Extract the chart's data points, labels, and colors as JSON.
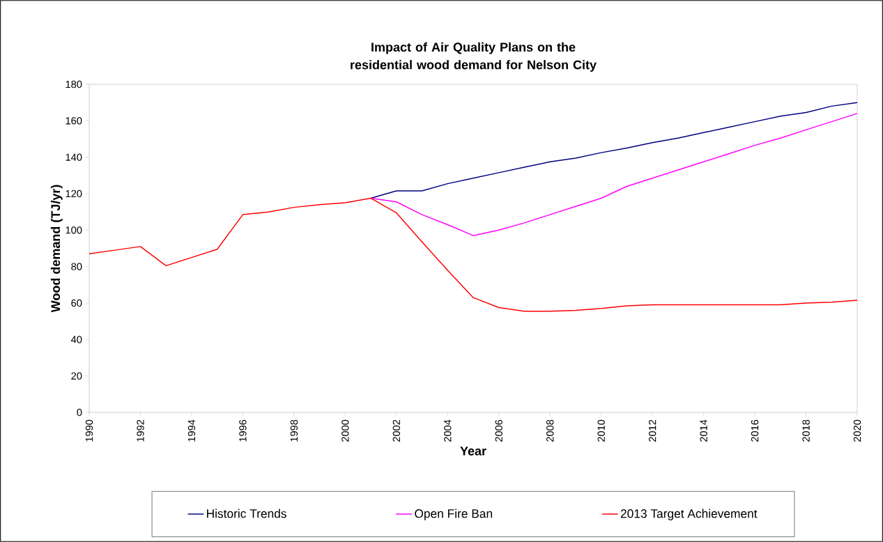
{
  "chart_data": {
    "type": "line",
    "title": "Impact of Air Quality Plans on the residential wood demand for Nelson City",
    "xlabel": "Year",
    "ylabel": "Wood demand (TJ/yr)",
    "x": [
      1990,
      1991,
      1992,
      1993,
      1994,
      1995,
      1996,
      1997,
      1998,
      1999,
      2000,
      2001,
      2002,
      2003,
      2004,
      2005,
      2006,
      2007,
      2008,
      2009,
      2010,
      2011,
      2012,
      2013,
      2014,
      2015,
      2016,
      2017,
      2018,
      2019,
      2020
    ],
    "series": [
      {
        "name": "Historic Trends",
        "color": "#000080",
        "values": [
          null,
          null,
          null,
          null,
          null,
          null,
          null,
          null,
          null,
          null,
          null,
          117.5,
          121.5,
          121.5,
          125.5,
          128.5,
          131.5,
          134.5,
          137.5,
          139.5,
          142.5,
          145,
          148,
          150.5,
          153.5,
          156.5,
          159.5,
          162.5,
          164.5,
          168,
          170
        ]
      },
      {
        "name": "Open Fire Ban",
        "color": "#ff00ff",
        "values": [
          null,
          null,
          null,
          null,
          null,
          null,
          null,
          null,
          null,
          null,
          null,
          117.5,
          115.5,
          108.5,
          103,
          97,
          100,
          104,
          108.5,
          113,
          117.5,
          124,
          128.5,
          133,
          137.5,
          142,
          146.5,
          150.5,
          155,
          159.5,
          164
        ]
      },
      {
        "name": "2013 Target Achievement",
        "color": "#ff0000",
        "values": [
          87,
          89,
          91,
          80.5,
          85,
          89.5,
          108.5,
          110,
          112.5,
          114,
          115,
          117.5,
          109.5,
          93.5,
          78,
          63,
          57.5,
          55.5,
          55.5,
          56,
          57,
          58.5,
          59,
          59,
          59,
          59,
          59,
          59,
          60,
          60.5,
          61.5
        ]
      }
    ],
    "xlim": [
      1990,
      2020
    ],
    "xticks": [
      1990,
      1992,
      1994,
      1996,
      1998,
      2000,
      2002,
      2004,
      2006,
      2008,
      2010,
      2012,
      2014,
      2016,
      2018,
      2020
    ],
    "ylim": [
      0,
      180
    ],
    "yticks": [
      0,
      20,
      40,
      60,
      80,
      100,
      120,
      140,
      160,
      180
    ],
    "grid": false,
    "legend": "bottom",
    "marker": "none",
    "line_style": "solid"
  }
}
